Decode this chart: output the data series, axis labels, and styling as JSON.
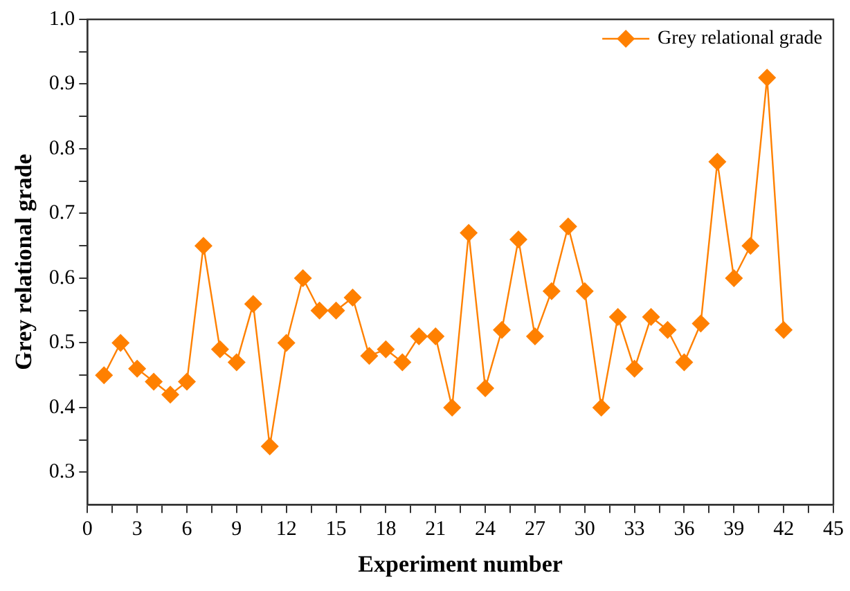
{
  "chart_data": {
    "type": "line",
    "xlabel": "Experiment number",
    "ylabel": "Grey relational grade",
    "x": [
      1,
      2,
      3,
      4,
      5,
      6,
      7,
      8,
      9,
      10,
      11,
      12,
      13,
      14,
      15,
      16,
      17,
      18,
      19,
      20,
      21,
      22,
      23,
      24,
      25,
      26,
      27,
      28,
      29,
      30,
      31,
      32,
      33,
      34,
      35,
      36,
      37,
      38,
      39,
      40,
      41,
      42
    ],
    "series": [
      {
        "name": "Grey relational grade",
        "color": "#ff8000",
        "values": [
          0.45,
          0.5,
          0.46,
          0.44,
          0.42,
          0.44,
          0.65,
          0.49,
          0.47,
          0.56,
          0.34,
          0.5,
          0.6,
          0.55,
          0.55,
          0.57,
          0.48,
          0.49,
          0.47,
          0.51,
          0.51,
          0.4,
          0.67,
          0.43,
          0.52,
          0.66,
          0.51,
          0.58,
          0.68,
          0.58,
          0.4,
          0.54,
          0.46,
          0.54,
          0.52,
          0.47,
          0.53,
          0.78,
          0.6,
          0.65,
          0.91,
          0.52
        ]
      }
    ],
    "xlim": [
      0,
      45
    ],
    "xticks": [
      0,
      {
        "value": 1.5,
        "label": null
      },
      3,
      {
        "value": 4.5,
        "label": null
      },
      6,
      {
        "value": 7.5,
        "label": null
      },
      9,
      {
        "value": 10.5,
        "label": null
      },
      12,
      {
        "value": 13.5,
        "label": null
      },
      15,
      {
        "value": 16.5,
        "label": null
      },
      18,
      {
        "value": 19.5,
        "label": null
      },
      21,
      {
        "value": 22.5,
        "label": null
      },
      24,
      {
        "value": 25.5,
        "label": null
      },
      27,
      {
        "value": 28.5,
        "label": null
      },
      30,
      {
        "value": 31.5,
        "label": null
      },
      33,
      {
        "value": 34.5,
        "label": null
      },
      36,
      {
        "value": 37.5,
        "label": null
      },
      39,
      {
        "value": 40.5,
        "label": null
      },
      42,
      {
        "value": 43.5,
        "label": null
      },
      45
    ],
    "ylim": [
      0.25,
      1.0
    ],
    "yticks": [
      0.3,
      {
        "value": 0.35,
        "label": null
      },
      0.4,
      {
        "value": 0.45,
        "label": null
      },
      0.5,
      {
        "value": 0.55,
        "label": null
      },
      0.6,
      {
        "value": 0.65,
        "label": null
      },
      0.7,
      {
        "value": 0.75,
        "label": null
      },
      0.8,
      {
        "value": 0.85,
        "label": null
      },
      0.9,
      {
        "value": 0.95,
        "label": null
      },
      {
        "value": 1.0,
        "label": "1.0"
      }
    ],
    "grid": false,
    "legend": "top right",
    "marker": "diamond",
    "line_style": "solid"
  }
}
